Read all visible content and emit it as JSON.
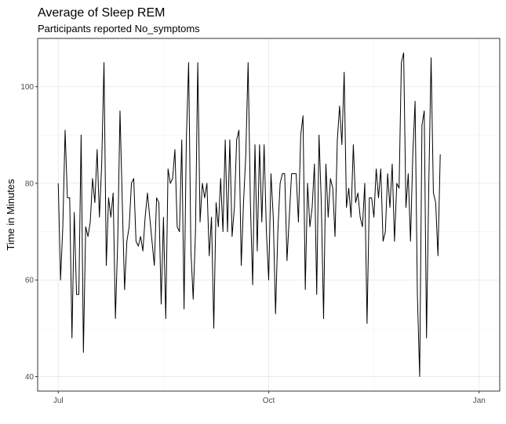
{
  "chart_data": {
    "type": "line",
    "title": "Average of Sleep REM",
    "subtitle": "Participants reported No_symptoms",
    "xlabel": "",
    "ylabel": "Time in Minutes",
    "ylim": [
      37,
      110
    ],
    "y_ticks": [
      40,
      60,
      80,
      100
    ],
    "x_ticks": [
      {
        "label": "Jul",
        "date": "2020-07-01"
      },
      {
        "label": "Oct",
        "date": "2020-10-01"
      },
      {
        "label": "Jan",
        "date": "2021-01-01"
      }
    ],
    "xlim": [
      "2020-06-22",
      "2021-01-10"
    ],
    "grid": true,
    "line_color": "#000000",
    "series": [
      {
        "x_start": "2020-07-01",
        "x_step_days": 1,
        "values": [
          80,
          60,
          71,
          91,
          77,
          77,
          48,
          74,
          57,
          57,
          90,
          45,
          71,
          69,
          72,
          81,
          76,
          87,
          73,
          84,
          105,
          63,
          77,
          73,
          78,
          52,
          68,
          95,
          76,
          58,
          68,
          71,
          80,
          81,
          68,
          67,
          69,
          66,
          73,
          78,
          73,
          68,
          63,
          77,
          76,
          55,
          73,
          52,
          83,
          80,
          81,
          87,
          71,
          70,
          89,
          54,
          89,
          105,
          66,
          56,
          70,
          105,
          72,
          80,
          77,
          80,
          65,
          73,
          50,
          76,
          71,
          81,
          70,
          89,
          70,
          89,
          69,
          75,
          89,
          91,
          63,
          76,
          86,
          105,
          76,
          59,
          88,
          66,
          88,
          72,
          88,
          70,
          60,
          82,
          73,
          53,
          70,
          80,
          82,
          82,
          64,
          73,
          82,
          82,
          82,
          72,
          90,
          94,
          58,
          80,
          71,
          75,
          84,
          57,
          90,
          76,
          52,
          84,
          73,
          81,
          79,
          69,
          89,
          96,
          88,
          103,
          75,
          79,
          73,
          88,
          76,
          78,
          73,
          71,
          80,
          51,
          77,
          77,
          73,
          83,
          77,
          83,
          68,
          70,
          82,
          75,
          84,
          68,
          80,
          79,
          105,
          107,
          75,
          82,
          68,
          86,
          97,
          57,
          40,
          92,
          95,
          48,
          80,
          106,
          78,
          76,
          65,
          86
        ]
      }
    ]
  }
}
